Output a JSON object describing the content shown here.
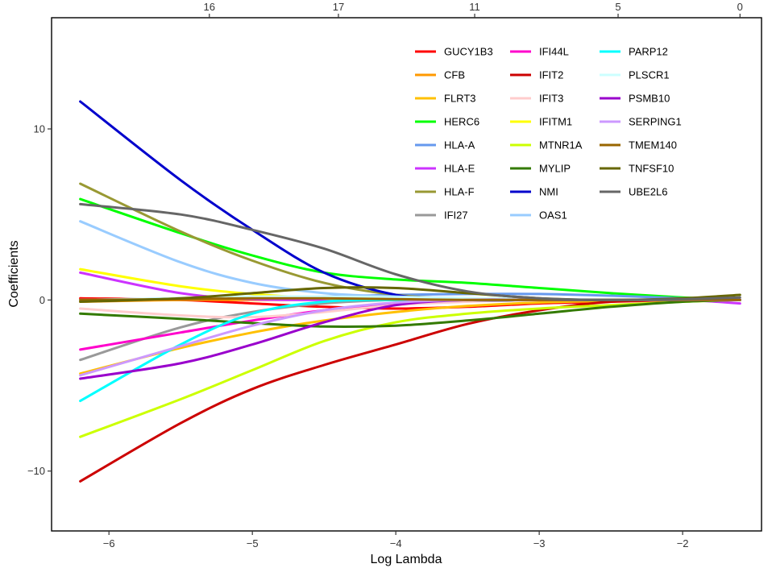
{
  "chart_data": {
    "type": "line",
    "title": "",
    "xlabel": "Log Lambda",
    "ylabel": "Coefficients",
    "xlim": [
      -6.4,
      -1.45
    ],
    "ylim": [
      -13.5,
      16.5
    ],
    "x_ticks": [
      -6,
      -5,
      -4,
      -3,
      -2
    ],
    "y_ticks": [
      -10,
      0,
      10
    ],
    "x_tick_labels": [
      "−6",
      "−5",
      "−4",
      "−3",
      "−2"
    ],
    "y_tick_labels": [
      "−10",
      "0",
      "10"
    ],
    "top_axis": {
      "positions": [
        -5.3,
        -4.4,
        -3.45,
        -2.45,
        -1.6
      ],
      "labels": [
        "16",
        "17",
        "11",
        "5",
        "0"
      ]
    },
    "grid": false,
    "legend_position": "top-right",
    "legend_columns": 3,
    "series": [
      {
        "name": "GUCY1B3",
        "color": "#ff0000",
        "x": [
          -6.2,
          -5.5,
          -5.0,
          -4.5,
          -4.0,
          -3.5,
          -3.0,
          -2.5,
          -2.0,
          -1.6
        ],
        "y": [
          0.1,
          0.0,
          -0.2,
          -0.4,
          -0.5,
          -0.4,
          -0.2,
          -0.1,
          0.0,
          0.0
        ]
      },
      {
        "name": "CFB",
        "color": "#ff9900",
        "x": [
          -6.2,
          -5.5,
          -5.0,
          -4.5,
          -4.0,
          -3.5,
          -3.0,
          -2.5,
          -2.0,
          -1.6
        ],
        "y": [
          -0.1,
          0.0,
          0.0,
          0.0,
          0.05,
          0.05,
          0.0,
          0.0,
          0.0,
          0.0
        ]
      },
      {
        "name": "FLRT3",
        "color": "#ffc000",
        "x": [
          -6.2,
          -5.5,
          -5.0,
          -4.5,
          -4.0,
          -3.5,
          -3.0,
          -2.5,
          -2.0,
          -1.6
        ],
        "y": [
          -4.3,
          -2.8,
          -1.9,
          -1.2,
          -0.7,
          -0.35,
          -0.15,
          -0.05,
          0.0,
          0.0
        ]
      },
      {
        "name": "HERC6",
        "color": "#00ff00",
        "x": [
          -6.2,
          -5.5,
          -5.0,
          -4.5,
          -4.0,
          -3.5,
          -3.0,
          -2.5,
          -2.0,
          -1.6
        ],
        "y": [
          5.9,
          3.9,
          2.6,
          1.6,
          1.2,
          1.0,
          0.7,
          0.4,
          0.15,
          0.0
        ]
      },
      {
        "name": "HLA-A",
        "color": "#6699ee",
        "x": [
          -6.2,
          -5.5,
          -5.0,
          -4.5,
          -4.0,
          -3.5,
          -3.0,
          -2.5,
          -2.0,
          -1.6
        ],
        "y": [
          0.0,
          0.1,
          0.15,
          0.2,
          0.3,
          0.35,
          0.35,
          0.25,
          0.1,
          0.0
        ]
      },
      {
        "name": "HLA-E",
        "color": "#cc33ff",
        "x": [
          -6.2,
          -5.5,
          -5.0,
          -4.5,
          -4.0,
          -3.5,
          -3.0,
          -2.5,
          -2.0,
          -1.6
        ],
        "y": [
          1.6,
          0.4,
          0.05,
          0.0,
          0.0,
          0.0,
          0.0,
          0.0,
          0.0,
          -0.2
        ]
      },
      {
        "name": "HLA-F",
        "color": "#999933",
        "x": [
          -6.2,
          -5.5,
          -5.0,
          -4.5,
          -4.0,
          -3.5,
          -3.0,
          -2.5,
          -2.0,
          -1.6
        ],
        "y": [
          6.8,
          4.0,
          2.3,
          1.0,
          0.3,
          0.05,
          0.0,
          0.0,
          0.0,
          0.0
        ]
      },
      {
        "name": "IFI27",
        "color": "#999999",
        "x": [
          -6.2,
          -5.5,
          -5.0,
          -4.5,
          -4.0,
          -3.5,
          -3.0,
          -2.5,
          -2.0,
          -1.6
        ],
        "y": [
          -3.5,
          -1.6,
          -0.7,
          -0.2,
          0.0,
          0.0,
          0.0,
          0.0,
          0.0,
          0.0
        ]
      },
      {
        "name": "IFI44L",
        "color": "#ff00cc",
        "x": [
          -6.2,
          -5.5,
          -5.0,
          -4.5,
          -4.0,
          -3.5,
          -3.0,
          -2.5,
          -2.0,
          -1.6
        ],
        "y": [
          -2.9,
          -1.9,
          -1.2,
          -0.6,
          -0.2,
          0.0,
          0.0,
          0.0,
          0.0,
          0.0
        ]
      },
      {
        "name": "IFIT2",
        "color": "#cc0000",
        "x": [
          -6.2,
          -5.5,
          -5.0,
          -4.5,
          -4.0,
          -3.5,
          -3.0,
          -2.5,
          -2.0,
          -1.6
        ],
        "y": [
          -10.6,
          -7.2,
          -5.2,
          -3.8,
          -2.6,
          -1.4,
          -0.6,
          -0.1,
          0.0,
          0.0
        ]
      },
      {
        "name": "IFIT3",
        "color": "#ffcccc",
        "x": [
          -6.2,
          -5.5,
          -5.0,
          -4.5,
          -4.0,
          -3.5,
          -3.0,
          -2.5,
          -2.0,
          -1.6
        ],
        "y": [
          -0.5,
          -0.9,
          -1.0,
          -0.7,
          -0.3,
          -0.1,
          0.0,
          0.0,
          0.0,
          0.0
        ]
      },
      {
        "name": "IFITM1",
        "color": "#ffff00",
        "x": [
          -6.2,
          -5.5,
          -5.0,
          -4.5,
          -4.0,
          -3.5,
          -3.0,
          -2.5,
          -2.0,
          -1.6
        ],
        "y": [
          1.8,
          0.8,
          0.35,
          0.1,
          0.0,
          0.0,
          0.0,
          0.0,
          0.0,
          0.0
        ]
      },
      {
        "name": "MTNR1A",
        "color": "#ccff00",
        "x": [
          -6.2,
          -5.5,
          -5.0,
          -4.5,
          -4.0,
          -3.5,
          -3.0,
          -2.5,
          -2.0,
          -1.6
        ],
        "y": [
          -8.0,
          -5.8,
          -4.1,
          -2.4,
          -1.3,
          -0.8,
          -0.5,
          -0.3,
          -0.1,
          0.0
        ]
      },
      {
        "name": "MYLIP",
        "color": "#337a00",
        "x": [
          -6.2,
          -5.5,
          -5.0,
          -4.5,
          -4.0,
          -3.5,
          -3.0,
          -2.5,
          -2.0,
          -1.6
        ],
        "y": [
          -0.8,
          -1.1,
          -1.35,
          -1.55,
          -1.5,
          -1.2,
          -0.8,
          -0.4,
          -0.1,
          0.0
        ]
      },
      {
        "name": "NMI",
        "color": "#0000cc",
        "x": [
          -6.2,
          -5.5,
          -5.0,
          -4.5,
          -4.0,
          -3.5,
          -3.0,
          -2.5,
          -2.0,
          -1.6
        ],
        "y": [
          11.6,
          7.0,
          4.1,
          1.6,
          0.3,
          0.0,
          0.0,
          0.0,
          0.0,
          0.0
        ]
      },
      {
        "name": "OAS1",
        "color": "#99ccff",
        "x": [
          -6.2,
          -5.5,
          -5.0,
          -4.5,
          -4.0,
          -3.5,
          -3.0,
          -2.5,
          -2.0,
          -1.6
        ],
        "y": [
          4.6,
          2.2,
          1.0,
          0.4,
          0.2,
          0.1,
          0.05,
          0.0,
          0.0,
          0.0
        ]
      },
      {
        "name": "PARP12",
        "color": "#00ffff",
        "x": [
          -6.2,
          -5.5,
          -5.0,
          -4.5,
          -4.0,
          -3.5,
          -3.0,
          -2.5,
          -2.0,
          -1.6
        ],
        "y": [
          -5.9,
          -2.6,
          -0.8,
          -0.1,
          0.0,
          0.0,
          0.0,
          0.0,
          0.0,
          0.0
        ]
      },
      {
        "name": "PLSCR1",
        "color": "#ccffff",
        "x": [
          -6.2,
          -5.5,
          -5.0,
          -4.5,
          -4.0,
          -3.5,
          -3.0,
          -2.5,
          -2.0,
          -1.6
        ],
        "y": [
          0.0,
          0.1,
          0.2,
          0.2,
          0.15,
          0.1,
          0.05,
          0.0,
          0.0,
          0.0
        ]
      },
      {
        "name": "PSMB10",
        "color": "#9900cc",
        "x": [
          -6.2,
          -5.5,
          -5.0,
          -4.5,
          -4.0,
          -3.5,
          -3.0,
          -2.5,
          -2.0,
          -1.6
        ],
        "y": [
          -4.6,
          -3.7,
          -2.6,
          -1.3,
          -0.3,
          0.0,
          0.0,
          0.0,
          0.0,
          0.0
        ]
      },
      {
        "name": "SERPING1",
        "color": "#cc99ff",
        "x": [
          -6.2,
          -5.5,
          -5.0,
          -4.5,
          -4.0,
          -3.5,
          -3.0,
          -2.5,
          -2.0,
          -1.6
        ],
        "y": [
          -4.4,
          -2.7,
          -1.5,
          -0.6,
          -0.15,
          0.0,
          0.0,
          0.0,
          0.0,
          0.0
        ]
      },
      {
        "name": "TMEM140",
        "color": "#996600",
        "x": [
          -6.2,
          -5.5,
          -5.0,
          -4.5,
          -4.0,
          -3.5,
          -3.0,
          -2.5,
          -2.0,
          -1.6
        ],
        "y": [
          0.0,
          0.05,
          0.1,
          0.1,
          0.05,
          0.0,
          0.0,
          0.0,
          0.0,
          0.0
        ]
      },
      {
        "name": "TNFSF10",
        "color": "#666600",
        "x": [
          -6.2,
          -5.5,
          -5.0,
          -4.5,
          -4.0,
          -3.5,
          -3.0,
          -2.5,
          -2.0,
          -1.6
        ],
        "y": [
          -0.1,
          0.1,
          0.4,
          0.7,
          0.7,
          0.4,
          0.1,
          0.0,
          0.1,
          0.3
        ]
      },
      {
        "name": "UBE2L6",
        "color": "#666666",
        "x": [
          -6.2,
          -5.5,
          -5.0,
          -4.5,
          -4.0,
          -3.5,
          -3.0,
          -2.5,
          -2.0,
          -1.6
        ],
        "y": [
          5.6,
          5.0,
          4.1,
          3.0,
          1.5,
          0.5,
          0.1,
          0.0,
          0.05,
          0.15
        ]
      }
    ]
  }
}
